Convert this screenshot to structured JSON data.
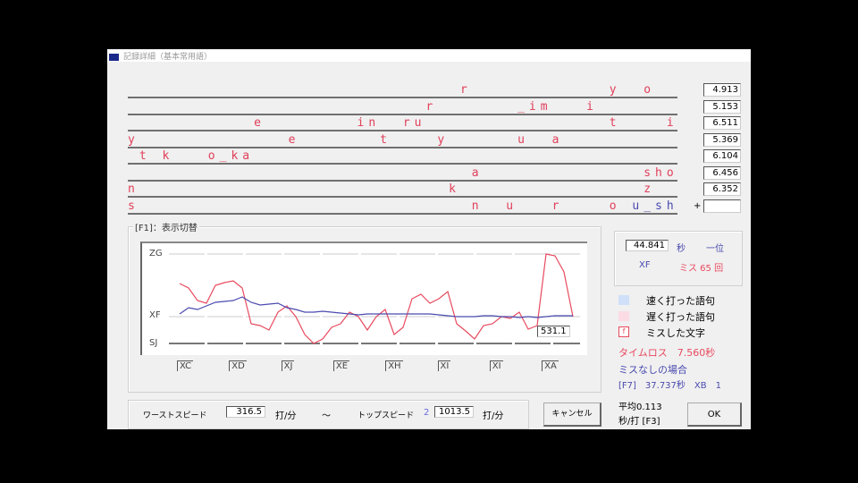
{
  "window": {
    "title": "記録詳細（基本常用語）"
  },
  "rows": [
    {
      "text": "                             r            y  o",
      "time": "4.913"
    },
    {
      "text": "                          r       _im   i",
      "time": "5.153"
    },
    {
      "text": "           e        in  ru                t    i",
      "time": "6.511"
    },
    {
      "text": "y             e       t    y      u  a",
      "time": "5.369"
    },
    {
      "text": " t k   o_ka",
      "time": "6.104"
    },
    {
      "text": "                              a              sho",
      "time": "6.456"
    },
    {
      "text": "n                           k                z",
      "time": "6.352"
    },
    {
      "text": "s                             n  u   r    o ",
      "text_blue": "u_sh",
      "time": ""
    }
  ],
  "plus_label": "+",
  "graph": {
    "group_label": "[F1]：表示切替",
    "value_box": "531.1"
  },
  "chart_data": {
    "type": "line",
    "y_ticks": [
      {
        "label": "ZG",
        "value": 100
      },
      {
        "label": "XF",
        "value": 30
      },
      {
        "label": "SJ",
        "value": 0
      }
    ],
    "ylim": [
      0,
      100
    ],
    "x_ticks": [
      "XC",
      "XD",
      "XJ",
      "XE",
      "XH",
      "XI",
      "XI",
      "XA"
    ],
    "series": [
      {
        "color": "#e84a5f",
        "values": [
          67,
          62,
          48,
          45,
          65,
          68,
          70,
          62,
          22,
          20,
          15,
          35,
          42,
          30,
          10,
          0,
          5,
          18,
          22,
          35,
          30,
          15,
          30,
          38,
          10,
          18,
          50,
          55,
          45,
          50,
          58,
          22,
          14,
          5,
          20,
          22,
          30,
          28,
          35,
          16,
          20,
          100,
          98,
          80,
          30
        ]
      },
      {
        "color": "#4a4ab0",
        "values": [
          33,
          40,
          38,
          42,
          46,
          47,
          48,
          52,
          46,
          43,
          44,
          45,
          40,
          38,
          35,
          35,
          36,
          35,
          34,
          33,
          32,
          33,
          33,
          33,
          33,
          33,
          33,
          33,
          33,
          32,
          31,
          30,
          30,
          30,
          31,
          31,
          30,
          30,
          29,
          30,
          29,
          30,
          31,
          31,
          31
        ]
      }
    ]
  },
  "summary": {
    "time": "44.841",
    "sec_unit": "秒",
    "rank_place": "一位",
    "rank": "XF",
    "miss": "ミス 65 回"
  },
  "legend": {
    "fast": "速く打った語句",
    "slow": "遅く打った語句",
    "miss": "ミスした文字",
    "miss_sample": "f"
  },
  "timeloss": "タイムロス　7.560秒",
  "nomiss_title": "ミスなしの場合",
  "nomiss_detail": "[F7]　37.737秒　XB　1",
  "average": {
    "line1": "平均0.113",
    "line2": "秒/打 [F3]"
  },
  "ok_label": "OK",
  "cancel_label": "キャンセル",
  "speed": {
    "worst_label": "ワーストスピード",
    "worst_value": "316.5",
    "unit": "打/分",
    "tilde": "〜",
    "top_label": "トップスピード",
    "top_index": "2",
    "top_value": "1013.5"
  }
}
